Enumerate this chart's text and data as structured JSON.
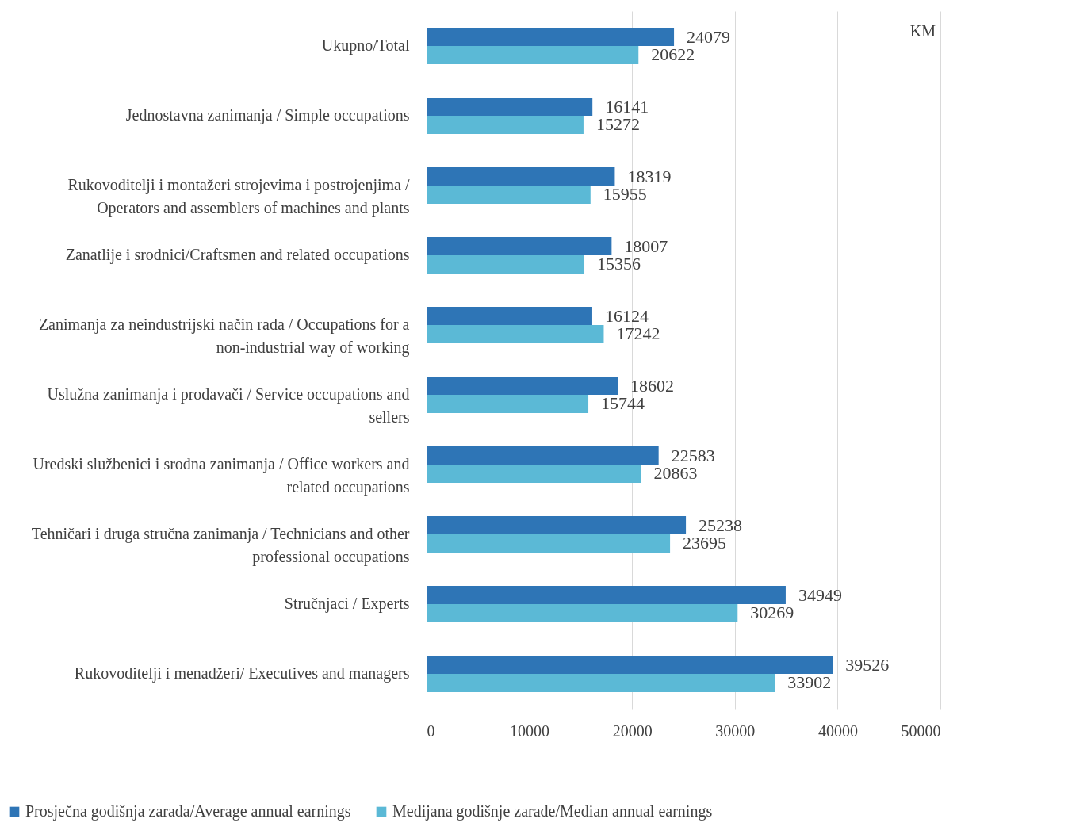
{
  "chart_data": {
    "type": "bar",
    "orientation": "horizontal",
    "categories": [
      "Ukupno/Total",
      "Jednostavna zanimanja / Simple occupations",
      "Rukovoditelji i montažeri strojevima i postrojenjima / Operators and assemblers of machines and plants",
      "Zanatlije i srodnici/Craftsmen and related occupations",
      "Zanimanja za neindustrijski način rada / Occupations for a non-industrial way of working",
      "Uslužna zanimanja i prodavači / Service occupations and sellers",
      "Uredski službenici i srodna zanimanja / Office workers and related occupations",
      "Tehničari i druga stručna zanimanja / Technicians and other professional occupations",
      "Stručnjaci / Experts",
      "Rukovoditelji i menadžeri/ Executives and managers"
    ],
    "series": [
      {
        "name": "Prosječna godišnja zarada/Average annual earnings",
        "color": "#2e75b6",
        "values": [
          24079,
          16141,
          18319,
          18007,
          16124,
          18602,
          22583,
          25238,
          34949,
          39526
        ]
      },
      {
        "name": "Medijana godišnje zarade/Median annual earnings",
        "color": "#5bb9d6",
        "values": [
          20622,
          15272,
          15955,
          15356,
          17242,
          15744,
          20863,
          23695,
          30269,
          33902
        ]
      }
    ],
    "xlim": [
      0,
      50000
    ],
    "xticks": [
      0,
      10000,
      20000,
      30000,
      40000,
      50000
    ],
    "grid": "x",
    "legend": "bottom",
    "data_labels": true,
    "annotations": [
      "KM"
    ]
  }
}
